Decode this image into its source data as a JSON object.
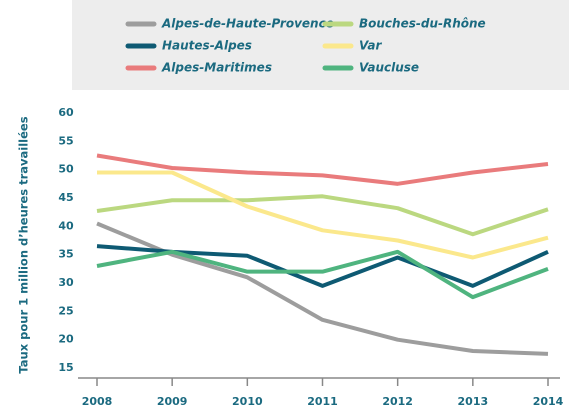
{
  "chart_data": {
    "type": "line",
    "y_label": "Taux pour 1 million d’heures travaillées",
    "categories": [
      "2008",
      "2009",
      "2010",
      "2011",
      "2012",
      "2013",
      "2014"
    ],
    "series": [
      {
        "name": "Alpes-de-Haute-Provence",
        "color": "#9d9d9d",
        "values": [
          40.5,
          35,
          31,
          23.5,
          20,
          18,
          17.5
        ]
      },
      {
        "name": "Hautes-Alpes",
        "color": "#0e5a73",
        "values": [
          36.5,
          35.5,
          34.8,
          29.5,
          34.5,
          29.5,
          35.5
        ]
      },
      {
        "name": "Alpes-Maritimes",
        "color": "#e97b7c",
        "values": [
          52.5,
          50.3,
          49.5,
          49,
          47.5,
          49.5,
          51
        ]
      },
      {
        "name": "Bouches-du-Rhône",
        "color": "#bbd880",
        "values": [
          42.7,
          44.6,
          44.6,
          45.3,
          43.2,
          38.6,
          43
        ]
      },
      {
        "name": "Var",
        "color": "#fbe88c",
        "values": [
          49.5,
          49.5,
          43.5,
          39.3,
          37.5,
          34.5,
          38
        ]
      },
      {
        "name": "Vaucluse",
        "color": "#4fb47f",
        "values": [
          33,
          35.5,
          32,
          32,
          35.5,
          27.5,
          32.5
        ]
      }
    ],
    "ylim": [
      15,
      60
    ],
    "yticks": [
      15,
      20,
      25,
      30,
      35,
      40,
      45,
      50,
      55,
      60
    ]
  }
}
